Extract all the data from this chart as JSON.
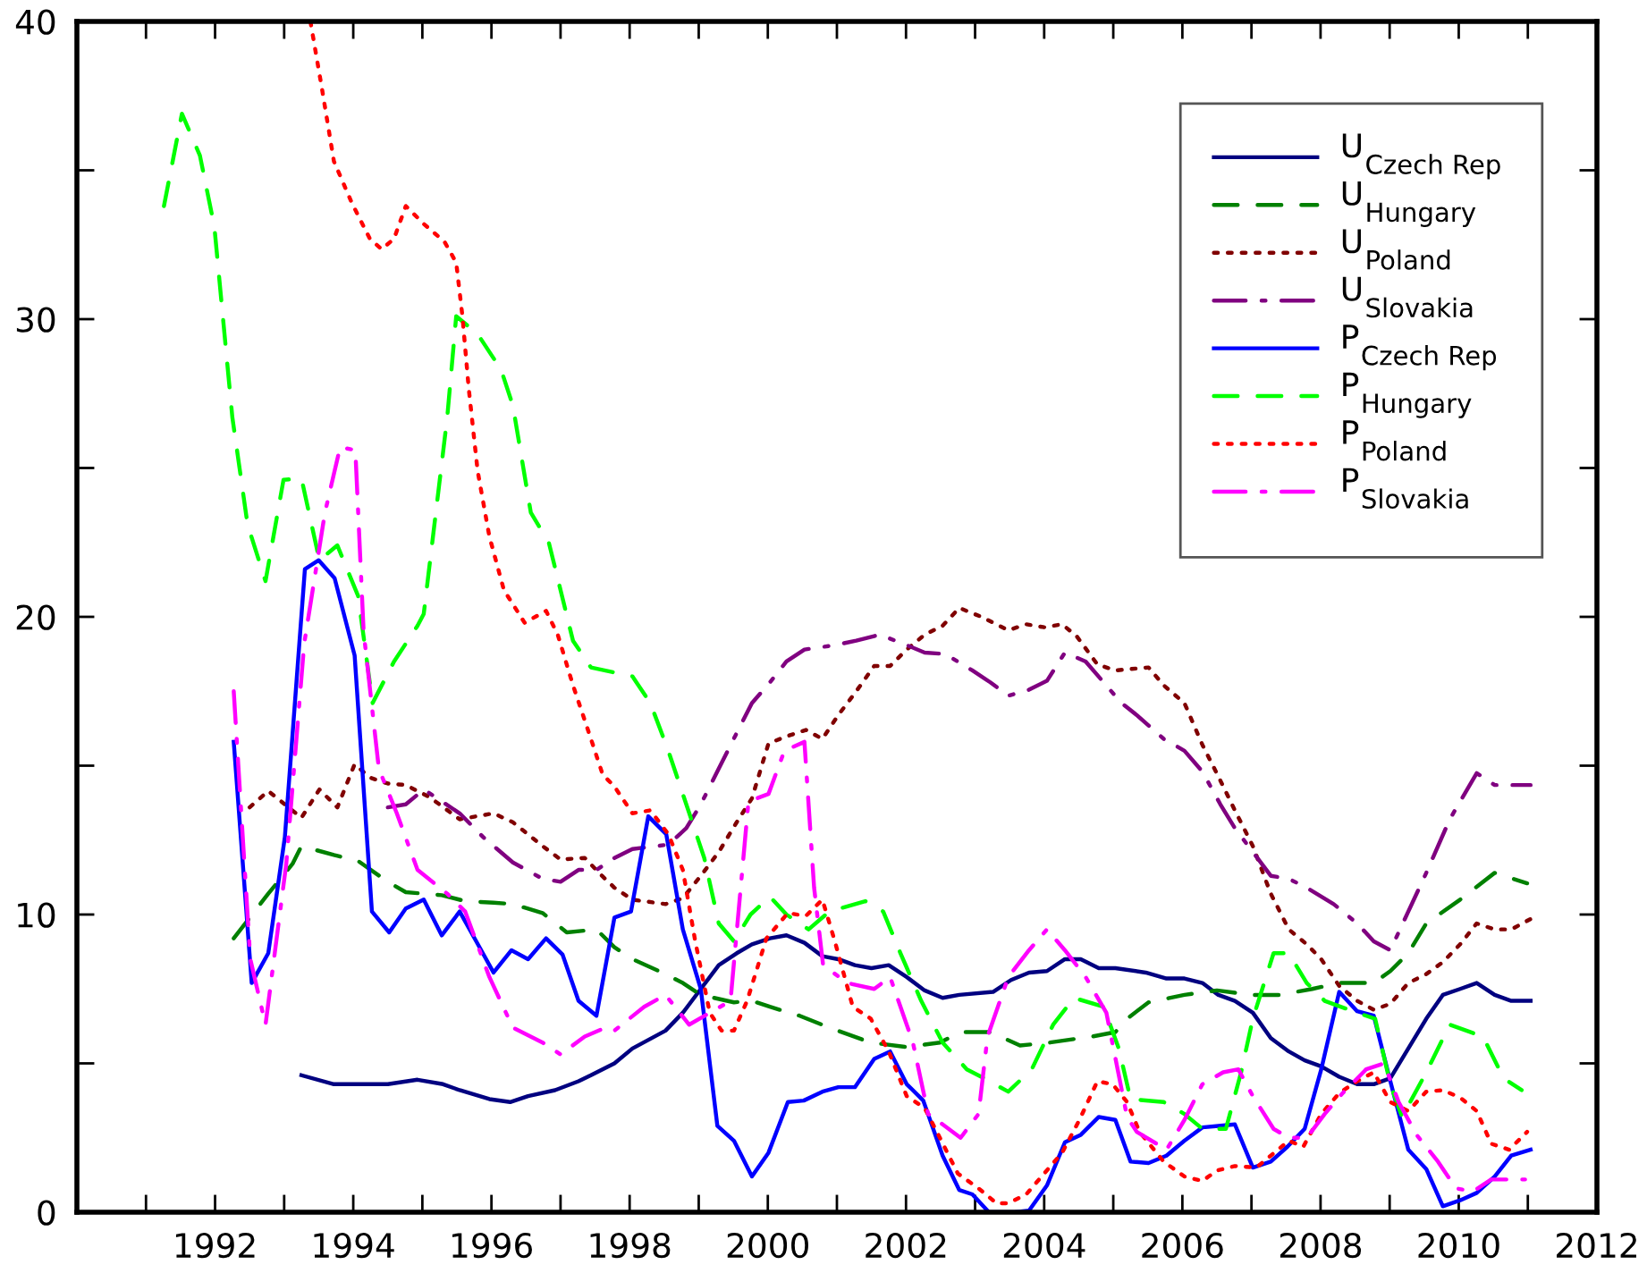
{
  "chart_data": {
    "type": "line",
    "xlim": [
      1990,
      2012
    ],
    "xticks": [
      {
        "value": 1990,
        "label": null
      },
      {
        "value": 1991,
        "label": null
      },
      1992,
      {
        "value": 1993,
        "label": null
      },
      1994,
      {
        "value": 1995,
        "label": null
      },
      1996,
      {
        "value": 1997,
        "label": null
      },
      1998,
      {
        "value": 1999,
        "label": null
      },
      2000,
      {
        "value": 2001,
        "label": null
      },
      2002,
      {
        "value": 2003,
        "label": null
      },
      2004,
      {
        "value": 2005,
        "label": null
      },
      2006,
      {
        "value": 2007,
        "label": null
      },
      2008,
      {
        "value": 2009,
        "label": null
      },
      2010,
      {
        "value": 2011,
        "label": null
      },
      2012
    ],
    "ylim": [
      0,
      40
    ],
    "yticks": [
      0,
      {
        "value": 5,
        "label": null
      },
      10,
      {
        "value": 15,
        "label": null
      },
      20,
      {
        "value": 25,
        "label": null
      },
      30,
      {
        "value": 35,
        "label": null
      },
      40
    ],
    "grid": false,
    "legend": "top right",
    "series": [
      {
        "name": "U$_{Czech Rep}$",
        "color": "#000080",
        "line_style": "solid",
        "x": [
          1993.25,
          1993.72,
          1994.5,
          1994.93,
          1995.3,
          1995.54,
          1995.97,
          1996.27,
          1996.53,
          1996.92,
          1997.26,
          1997.44,
          1997.78,
          1998.04,
          1998.52,
          1998.77,
          1999.03,
          1999.29,
          1999.55,
          1999.77,
          2000.03,
          2000.27,
          2000.53,
          2000.79,
          2001.02,
          2001.26,
          2001.5,
          2001.75,
          2002.01,
          2002.27,
          2002.53,
          2002.77,
          2003.26,
          2003.52,
          2003.78,
          2004.04,
          2004.3,
          2004.53,
          2004.79,
          2005.03,
          2005.47,
          2005.77,
          2006.03,
          2006.29,
          2006.52,
          2006.76,
          2007.02,
          2007.28,
          2007.54,
          2007.77,
          2008.01,
          2008.27,
          2008.53,
          2008.77,
          2009.01,
          2009.27,
          2009.53,
          2009.77,
          2010.02,
          2010.26,
          2010.52,
          2010.76,
          2011.04
        ],
        "values": [
          4.6,
          4.3,
          4.3,
          4.45,
          4.3,
          4.1,
          3.8,
          3.7,
          3.9,
          4.1,
          4.4,
          4.6,
          5.0,
          5.5,
          6.1,
          6.7,
          7.5,
          8.3,
          8.7,
          9.0,
          9.2,
          9.3,
          9.05,
          8.6,
          8.5,
          8.3,
          8.2,
          8.3,
          7.9,
          7.45,
          7.2,
          7.3,
          7.4,
          7.8,
          8.05,
          8.1,
          8.5,
          8.5,
          8.2,
          8.2,
          8.05,
          7.85,
          7.85,
          7.7,
          7.3,
          7.1,
          6.7,
          5.85,
          5.4,
          5.1,
          4.9,
          4.55,
          4.3,
          4.3,
          4.5,
          5.5,
          6.5,
          7.3,
          7.5,
          7.7,
          7.3,
          7.1,
          7.1
        ]
      },
      {
        "name": "U$_{Hungary}$",
        "color": "#008000",
        "line_style": "dashed",
        "x": [
          1992.27,
          1992.77,
          1993.12,
          1993.25,
          1993.72,
          1994.07,
          1994.5,
          1994.76,
          1995.28,
          1995.62,
          1996.03,
          1996.31,
          1996.74,
          1997.09,
          1997.52,
          1997.78,
          1998.04,
          1998.52,
          1998.77,
          1999.03,
          1999.51,
          1999.77,
          2000.03,
          2000.46,
          2000.89,
          2001.49,
          2002.01,
          2002.49,
          2002.79,
          2003.22,
          2003.65,
          2004.08,
          2004.69,
          2005.03,
          2005.2,
          2005.51,
          2006.03,
          2006.5,
          2007.02,
          2007.4,
          2007.88,
          2008.27,
          2008.77,
          2009.01,
          2009.27,
          2009.53,
          2010.02,
          2010.52,
          2010.99
        ],
        "values": [
          9.2,
          10.7,
          11.7,
          12.3,
          12.0,
          11.8,
          11.1,
          10.75,
          10.65,
          10.45,
          10.4,
          10.35,
          10.05,
          9.4,
          9.5,
          8.9,
          8.5,
          8.0,
          7.7,
          7.3,
          7.05,
          7.1,
          6.9,
          6.6,
          6.2,
          5.7,
          5.55,
          5.7,
          6.05,
          6.05,
          5.6,
          5.7,
          5.9,
          6.05,
          6.5,
          7.05,
          7.3,
          7.45,
          7.3,
          7.3,
          7.5,
          7.7,
          7.7,
          8.1,
          8.7,
          9.7,
          10.5,
          11.4,
          11.05
        ]
      },
      {
        "name": "U$_{Poland}$",
        "color": "#800000",
        "line_style": "dotted",
        "x": [
          1992.5,
          1992.77,
          1993.25,
          1993.51,
          1993.77,
          1994.02,
          1994.24,
          1994.5,
          1994.76,
          1995.1,
          1995.54,
          1996.03,
          1996.31,
          1996.74,
          1997.0,
          1997.35,
          1997.6,
          1997.78,
          1998.04,
          1998.52,
          1998.77,
          1999.03,
          1999.29,
          1999.55,
          1999.77,
          2000.01,
          2000.29,
          2000.55,
          2000.79,
          2001.02,
          2001.28,
          2001.54,
          2001.77,
          2002.01,
          2002.27,
          2002.53,
          2002.77,
          2003.09,
          2003.48,
          2003.74,
          2004.0,
          2004.26,
          2004.47,
          2004.77,
          2005.03,
          2005.51,
          2005.73,
          2006.03,
          2006.29,
          2006.55,
          2006.76,
          2007.02,
          2007.28,
          2007.54,
          2007.8,
          2008.01,
          2008.27,
          2008.53,
          2008.77,
          2009.01,
          2009.27,
          2009.53,
          2009.77,
          2010.02,
          2010.26,
          2010.52,
          2010.76,
          2011.04
        ],
        "values": [
          13.6,
          14.15,
          13.25,
          14.2,
          13.6,
          15.05,
          14.6,
          14.4,
          14.35,
          13.95,
          13.2,
          13.4,
          13.1,
          12.3,
          11.85,
          11.9,
          11.3,
          10.9,
          10.5,
          10.35,
          10.55,
          11.3,
          12.1,
          13.1,
          13.9,
          15.75,
          16.0,
          16.2,
          15.9,
          16.7,
          17.5,
          18.35,
          18.35,
          18.9,
          19.4,
          19.7,
          20.3,
          20.0,
          19.55,
          19.75,
          19.65,
          19.75,
          19.35,
          18.4,
          18.2,
          18.3,
          17.7,
          17.1,
          15.7,
          14.5,
          13.5,
          12.3,
          10.7,
          9.5,
          9.0,
          8.5,
          7.6,
          7.1,
          6.8,
          7.0,
          7.7,
          8.0,
          8.4,
          9.0,
          9.7,
          9.5,
          9.5,
          9.85
        ]
      },
      {
        "name": "U$_{Slovakia}$",
        "color": "#800080",
        "line_style": "dashdot",
        "x": [
          1994.5,
          1994.76,
          1995.02,
          1995.54,
          1995.88,
          1996.31,
          1996.74,
          1997.0,
          1997.26,
          1997.52,
          1997.78,
          1998.04,
          1998.56,
          1998.82,
          1999.03,
          1999.29,
          1999.55,
          1999.77,
          2000.03,
          2000.27,
          2000.53,
          2000.97,
          2001.28,
          2001.62,
          2002.01,
          2002.27,
          2002.57,
          2002.96,
          2003.22,
          2003.48,
          2003.78,
          2004.04,
          2004.3,
          2004.6,
          2004.86,
          2005.12,
          2005.34,
          2005.73,
          2006.03,
          2006.29,
          2006.55,
          2006.76,
          2007.02,
          2007.28,
          2007.54,
          2007.8,
          2008.19,
          2008.53,
          2008.77,
          2009.01,
          2009.27,
          2009.53,
          2009.87,
          2010.26,
          2010.52,
          2011.04
        ],
        "values": [
          13.6,
          13.7,
          14.2,
          13.4,
          12.6,
          11.75,
          11.2,
          11.1,
          11.5,
          11.5,
          11.9,
          12.2,
          12.35,
          12.9,
          13.7,
          14.9,
          16.1,
          17.1,
          17.8,
          18.5,
          18.9,
          19.05,
          19.2,
          19.4,
          19.05,
          18.8,
          18.75,
          18.2,
          17.8,
          17.35,
          17.55,
          17.85,
          18.8,
          18.5,
          17.8,
          17.1,
          16.7,
          15.9,
          15.5,
          14.8,
          13.7,
          12.9,
          12.1,
          11.3,
          11.2,
          10.9,
          10.35,
          9.7,
          9.1,
          8.8,
          10.1,
          11.4,
          13.2,
          14.75,
          14.35,
          14.35
        ]
      },
      {
        "name": "P$_{Czech Rep}$",
        "color": "#0000ff",
        "line_style": "solid",
        "x": [
          1992.27,
          1992.53,
          1992.77,
          1993.01,
          1993.3,
          1993.5,
          1993.73,
          1994.02,
          1994.27,
          1994.52,
          1994.76,
          1995.02,
          1995.28,
          1995.54,
          1995.78,
          1996.03,
          1996.29,
          1996.53,
          1996.79,
          1997.03,
          1997.26,
          1997.52,
          1997.78,
          1998.02,
          1998.27,
          1998.53,
          1998.77,
          1999.03,
          1999.27,
          1999.51,
          1999.77,
          2000.01,
          2000.29,
          2000.52,
          2000.79,
          2001.02,
          2001.26,
          2001.54,
          2001.77,
          2002.01,
          2002.25,
          2002.53,
          2002.77,
          2002.96,
          2003.2,
          2003.57,
          2003.78,
          2004.04,
          2004.3,
          2004.53,
          2004.79,
          2005.03,
          2005.25,
          2005.51,
          2005.77,
          2006.03,
          2006.29,
          2006.52,
          2006.76,
          2007.02,
          2007.28,
          2007.52,
          2007.77,
          2008.01,
          2008.27,
          2008.53,
          2008.77,
          2009.01,
          2009.27,
          2009.53,
          2009.77,
          2010.02,
          2010.26,
          2010.52,
          2010.76,
          2011.04
        ],
        "values": [
          15.8,
          7.7,
          8.7,
          12.6,
          21.6,
          21.9,
          21.3,
          18.7,
          10.1,
          9.4,
          10.2,
          10.5,
          9.3,
          10.1,
          9.1,
          8.05,
          8.8,
          8.5,
          9.2,
          8.65,
          7.1,
          6.6,
          9.9,
          10.1,
          13.3,
          12.7,
          9.5,
          7.5,
          2.9,
          2.4,
          1.2,
          2.0,
          3.7,
          3.75,
          4.05,
          4.2,
          4.2,
          5.15,
          5.4,
          4.3,
          3.75,
          1.9,
          0.75,
          0.6,
          0,
          0,
          0.05,
          0.9,
          2.35,
          2.6,
          3.2,
          3.1,
          1.7,
          1.65,
          1.9,
          2.4,
          2.85,
          2.9,
          2.95,
          1.5,
          1.7,
          2.2,
          2.8,
          4.8,
          7.4,
          6.75,
          6.6,
          4.4,
          2.1,
          1.45,
          0.2,
          0.4,
          0.65,
          1.2,
          1.9,
          2.1
        ]
      },
      {
        "name": "P$_{Hungary}$",
        "color": "#00ff00",
        "line_style": "dashed",
        "x": [
          1991.26,
          1991.52,
          1991.78,
          1991.99,
          1992.25,
          1992.47,
          1992.73,
          1992.99,
          1993.25,
          1993.51,
          1993.77,
          1994.07,
          1994.28,
          1994.59,
          1994.93,
          1995.02,
          1995.36,
          1995.49,
          1995.8,
          1996.14,
          1996.31,
          1996.57,
          1996.83,
          1997.18,
          1997.44,
          1998.04,
          1998.3,
          1998.56,
          1998.82,
          1999.08,
          1999.29,
          1999.51,
          1999.75,
          2000.03,
          2000.27,
          2000.59,
          2000.89,
          2001.41,
          2001.67,
          2001.92,
          2002.22,
          2002.53,
          2002.88,
          2003.13,
          2003.48,
          2003.82,
          2004.13,
          2004.43,
          2004.86,
          2005.08,
          2005.25,
          2005.73,
          2006.03,
          2006.29,
          2006.63,
          2006.85,
          2007.02,
          2007.32,
          2007.54,
          2007.8,
          2008.06,
          2008.53,
          2008.79,
          2009.01,
          2009.18,
          2009.53,
          2009.87,
          2010.35,
          2010.65,
          2010.91
        ],
        "values": [
          33.8,
          36.9,
          35.5,
          33.1,
          26.7,
          23.1,
          21.2,
          24.6,
          24.65,
          21.9,
          22.4,
          20.7,
          17.1,
          18.5,
          19.7,
          20.1,
          26.7,
          30.1,
          29.5,
          28.3,
          27.1,
          23.5,
          22.5,
          19.2,
          18.3,
          18.0,
          17.1,
          15.5,
          13.7,
          11.9,
          9.7,
          9.1,
          10.0,
          10.6,
          10.0,
          9.5,
          10.1,
          10.45,
          10.1,
          8.7,
          7.1,
          5.7,
          4.8,
          4.5,
          4.05,
          4.8,
          6.3,
          7.2,
          6.9,
          5.5,
          3.8,
          3.7,
          3.3,
          2.8,
          2.8,
          4.7,
          6.5,
          8.7,
          8.7,
          7.7,
          7.1,
          6.7,
          6.5,
          4.3,
          3.2,
          4.7,
          6.3,
          5.9,
          4.5,
          4.1
        ]
      },
      {
        "name": "P$_{Poland}$",
        "color": "#ff0000",
        "line_style": "dotted",
        "x": [
          1993.38,
          1993.55,
          1993.72,
          1993.98,
          1994.24,
          1994.41,
          1994.59,
          1994.76,
          1995.02,
          1995.32,
          1995.49,
          1995.58,
          1995.67,
          1995.8,
          1995.97,
          1996.18,
          1996.48,
          1996.79,
          1996.96,
          1997.18,
          1997.44,
          1997.61,
          1997.78,
          1998.04,
          1998.3,
          1998.56,
          1998.77,
          1998.95,
          1999.16,
          1999.33,
          1999.51,
          1999.7,
          1999.98,
          2000.29,
          2000.55,
          2000.79,
          2000.97,
          2001.23,
          2001.49,
          2001.75,
          2002.01,
          2002.27,
          2002.49,
          2002.75,
          2003.05,
          2003.31,
          2003.48,
          2003.74,
          2004.0,
          2004.26,
          2004.51,
          2004.77,
          2004.99,
          2005.2,
          2005.38,
          2005.73,
          2006.03,
          2006.29,
          2006.5,
          2006.76,
          2007.07,
          2007.28,
          2007.54,
          2007.75,
          2008.01,
          2008.27,
          2008.53,
          2008.77,
          2009.01,
          2009.27,
          2009.53,
          2009.77,
          2010.02,
          2010.26,
          2010.47,
          2010.73,
          2010.99
        ],
        "values": [
          40,
          37.7,
          35.3,
          33.9,
          32.7,
          32.35,
          32.7,
          33.8,
          33.2,
          32.6,
          31.9,
          30.1,
          27.7,
          24.9,
          22.7,
          20.9,
          19.8,
          20.2,
          19.4,
          17.7,
          15.9,
          14.7,
          14.3,
          13.4,
          13.5,
          12.7,
          11.5,
          9.1,
          6.7,
          6.1,
          6.1,
          7.1,
          9.2,
          10.05,
          9.95,
          10.5,
          9.1,
          6.9,
          6.5,
          5.4,
          3.9,
          3.5,
          2.5,
          1.3,
          0.8,
          0.3,
          0.3,
          0.6,
          1.3,
          2.0,
          3.1,
          4.4,
          4.3,
          3.7,
          2.7,
          1.7,
          1.2,
          1.05,
          1.4,
          1.55,
          1.5,
          1.9,
          2.4,
          2.2,
          3.3,
          4.0,
          4.4,
          4.7,
          3.7,
          3.4,
          4.05,
          4.1,
          3.85,
          3.4,
          2.3,
          2.1,
          2.7
        ]
      },
      {
        "name": "P$_{Slovakia}$",
        "color": "#ff00ff",
        "line_style": "dashdot",
        "x": [
          1992.27,
          1992.51,
          1992.73,
          1993.03,
          1993.29,
          1993.59,
          1993.81,
          1994.03,
          1994.15,
          1994.37,
          1994.63,
          1994.93,
          1995.36,
          1995.62,
          1995.97,
          1996.31,
          1996.74,
          1997.0,
          1997.35,
          1997.65,
          1997.78,
          1998.21,
          1998.52,
          1998.86,
          1999.16,
          1999.46,
          1999.72,
          2000.01,
          2000.24,
          2000.53,
          2000.67,
          2000.8,
          2001.15,
          2001.54,
          2001.77,
          2002.1,
          2002.32,
          2002.53,
          2002.79,
          2003.05,
          2003.18,
          2003.48,
          2003.78,
          2004.04,
          2004.3,
          2004.6,
          2004.9,
          2005.2,
          2005.34,
          2005.77,
          2006.03,
          2006.29,
          2006.59,
          2006.81,
          2007.02,
          2007.32,
          2007.54,
          2007.8,
          2008.06,
          2008.32,
          2008.66,
          2008.92,
          2009.13,
          2009.39,
          2009.7,
          2009.96,
          2010.21,
          2010.47,
          2010.73,
          2010.96
        ],
        "values": [
          17.5,
          8.5,
          6.3,
          11.7,
          19.1,
          23.5,
          25.7,
          25.6,
          19.5,
          14.9,
          13.4,
          11.5,
          10.7,
          10.1,
          7.9,
          6.2,
          5.7,
          5.3,
          5.9,
          6.2,
          6.1,
          6.9,
          7.3,
          6.3,
          6.7,
          7.1,
          13.8,
          14.05,
          15.5,
          15.8,
          10.9,
          8.3,
          7.7,
          7.5,
          7.9,
          5.7,
          3.3,
          2.95,
          2.5,
          3.3,
          5.9,
          7.9,
          8.8,
          9.5,
          8.8,
          7.9,
          6.7,
          3.2,
          2.7,
          2.1,
          3.1,
          4.3,
          4.7,
          4.8,
          3.9,
          2.8,
          2.5,
          2.5,
          3.3,
          4.0,
          4.8,
          5.0,
          3.7,
          2.6,
          1.7,
          0.8,
          0.7,
          1.1,
          1.1,
          1.1
        ]
      }
    ]
  }
}
